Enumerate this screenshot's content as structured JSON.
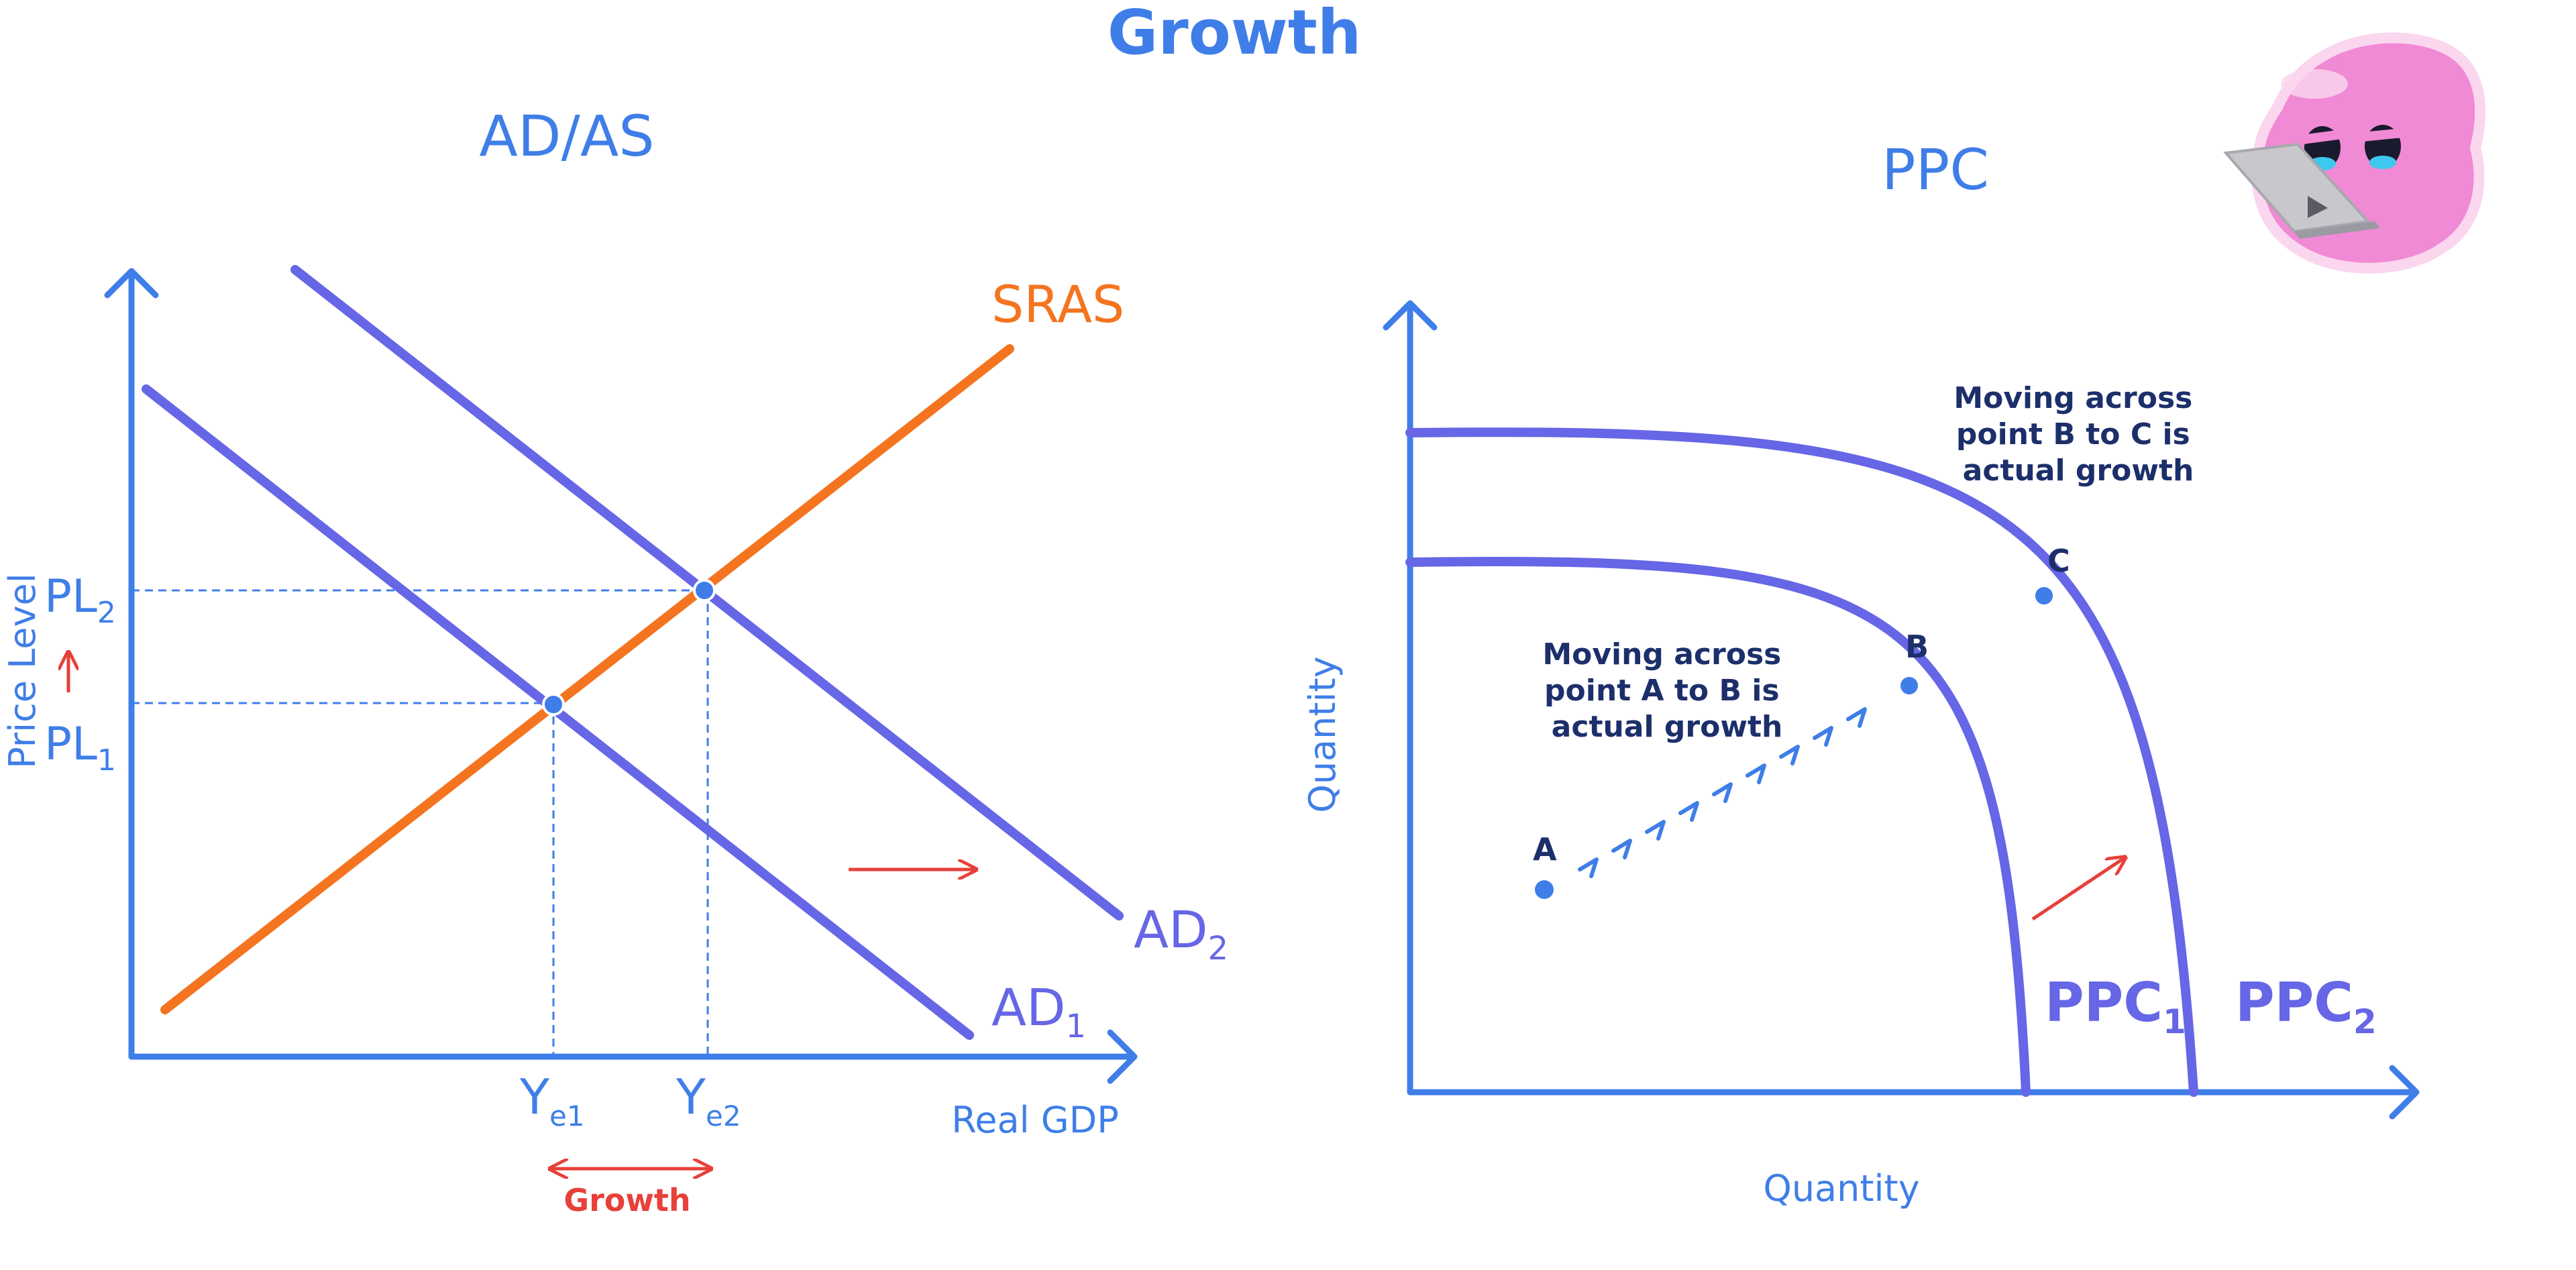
{
  "title": "Growth",
  "colors": {
    "axis": "#3f7ee8",
    "ad_curve": "#6666e6",
    "sras_curve": "#f47420",
    "arrow": "#e8403a",
    "guide": "#3f7ee8",
    "note": "#1c2f6b",
    "mascot": "#f08ad4"
  },
  "adas": {
    "title": "AD/AS",
    "ylabel": "Price Level",
    "xlabel": "Real GDP",
    "sras_label": "SRAS",
    "ad1": {
      "base": "AD",
      "sub": "1"
    },
    "ad2": {
      "base": "AD",
      "sub": "2"
    },
    "pl1": {
      "base": "PL",
      "sub": "1"
    },
    "pl2": {
      "base": "PL",
      "sub": "2"
    },
    "ye1": {
      "base": "Y",
      "sub": "e1"
    },
    "ye2": {
      "base": "Y",
      "sub": "e2"
    },
    "growth_label": "Growth"
  },
  "ppc": {
    "title": "PPC",
    "xlabel": "Quantity",
    "ylabel": "Quantity",
    "ppc1": {
      "base": "PPC",
      "sub": "1"
    },
    "ppc2": {
      "base": "PPC",
      "sub": "2"
    },
    "point_a": "A",
    "point_b": "B",
    "point_c": "C",
    "note_ab": [
      "Moving across",
      "point A to B is",
      "actual growth"
    ],
    "note_bc": [
      "Moving across",
      "point B to C is",
      "actual growth"
    ]
  },
  "mascot_icon": "laptop-blob-mascot-icon"
}
